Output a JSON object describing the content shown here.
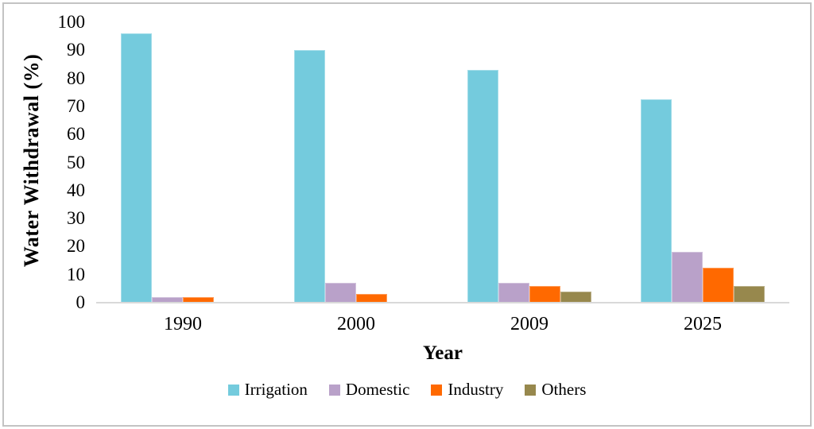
{
  "chart_data": {
    "type": "bar",
    "categories": [
      "1990",
      "2000",
      "2009",
      "2025"
    ],
    "series": [
      {
        "name": "Irrigation",
        "color": "#74cbdd",
        "values": [
          96,
          90,
          83,
          72.5
        ]
      },
      {
        "name": "Domestic",
        "color": "#b9a1c9",
        "values": [
          2,
          7,
          7,
          18
        ]
      },
      {
        "name": "Industry",
        "color": "#ff6900",
        "values": [
          2,
          3,
          6,
          12.5
        ]
      },
      {
        "name": "Others",
        "color": "#97884d",
        "values": [
          0,
          0,
          4,
          6
        ]
      }
    ],
    "xlabel": "Year",
    "ylabel": "Water Withdrawal (%)",
    "ylim": [
      0,
      100
    ],
    "ytick_step": 10,
    "ytick_labels": [
      "0",
      "10",
      "20",
      "30",
      "40",
      "50",
      "60",
      "70",
      "80",
      "90",
      "100"
    ],
    "legend_position": "bottom",
    "grid": false,
    "axis_line_color": "#d9d9d9",
    "frame_border_color": "#c3c3c3"
  }
}
